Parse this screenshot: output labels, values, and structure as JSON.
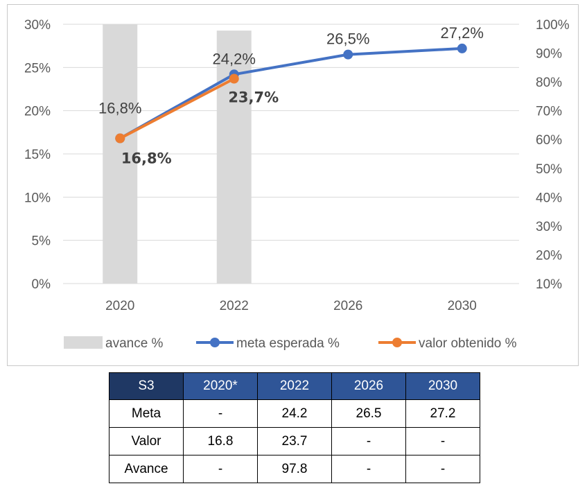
{
  "chart_data": {
    "type": "combo",
    "categories": [
      "2020",
      "2022",
      "2026",
      "2030"
    ],
    "y_left": {
      "lim": [
        0,
        30
      ],
      "ticks": [
        "0%",
        "5%",
        "10%",
        "15%",
        "20%",
        "25%",
        "30%"
      ]
    },
    "y_right": {
      "lim": [
        10,
        100
      ],
      "ticks": [
        "10%",
        "20%",
        "30%",
        "40%",
        "50%",
        "60%",
        "70%",
        "80%",
        "90%",
        "100%"
      ]
    },
    "grid": true,
    "legend_position": "bottom",
    "series": [
      {
        "name": "avance %",
        "type": "bar",
        "axis": "right",
        "color": "#d9d9d9",
        "values": [
          100,
          97.8,
          null,
          null
        ]
      },
      {
        "name": "meta esperada %",
        "type": "line",
        "axis": "left",
        "color": "#4472c4",
        "values": [
          16.8,
          24.2,
          26.5,
          27.2
        ],
        "labels": [
          "16,8%",
          "24,2%",
          "26,5%",
          "27,2%"
        ]
      },
      {
        "name": "valor obtenido %",
        "type": "line",
        "axis": "left",
        "color": "#ed7d31",
        "values": [
          16.8,
          23.7,
          null,
          null
        ],
        "labels": [
          "16,8%",
          "23,7%",
          "",
          ""
        ]
      }
    ]
  },
  "table": {
    "headers": [
      "S3",
      "2020*",
      "2022",
      "2026",
      "2030"
    ],
    "rows": [
      [
        "Meta",
        "-",
        "24.2",
        "26.5",
        "27.2"
      ],
      [
        "Valor",
        "16.8",
        "23.7",
        "-",
        "-"
      ],
      [
        "Avance",
        "-",
        "97.8",
        "-",
        "-"
      ]
    ]
  }
}
